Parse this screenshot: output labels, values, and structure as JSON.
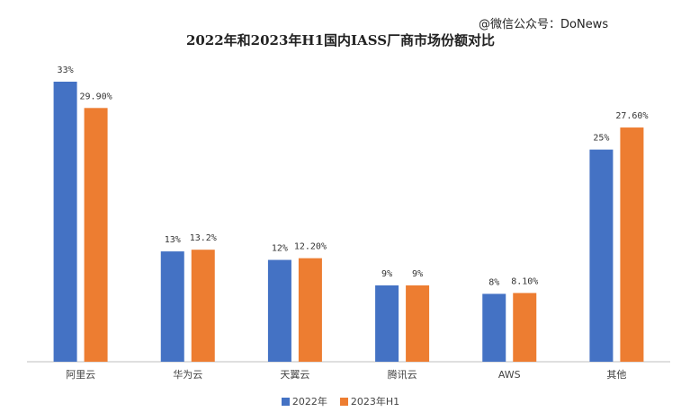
{
  "watermark": "@微信公众号：DoNews",
  "chart_data": {
    "type": "bar",
    "title": "2022年和2023年H1国内IASS厂商市场份额对比",
    "categories": [
      "阿里云",
      "华为云",
      "天翼云",
      "腾讯云",
      "AWS",
      "其他"
    ],
    "series": [
      {
        "name": "2022年",
        "color": "#4472C4",
        "values": [
          33,
          13,
          12,
          9,
          8,
          25
        ],
        "labels": [
          "33%",
          "13%",
          "12%",
          "9%",
          "8%",
          "25%"
        ]
      },
      {
        "name": "2023年H1",
        "color": "#ED7D31",
        "values": [
          29.9,
          13.2,
          12.2,
          9,
          8.1,
          27.6
        ],
        "labels": [
          "29.90%",
          "13.2%",
          "12.20%",
          "9%",
          "8.10%",
          "27.60%"
        ]
      }
    ],
    "ylim": [
      0,
      33
    ],
    "xlabel": "",
    "ylabel": "",
    "grid": false,
    "legend_position": "bottom"
  }
}
